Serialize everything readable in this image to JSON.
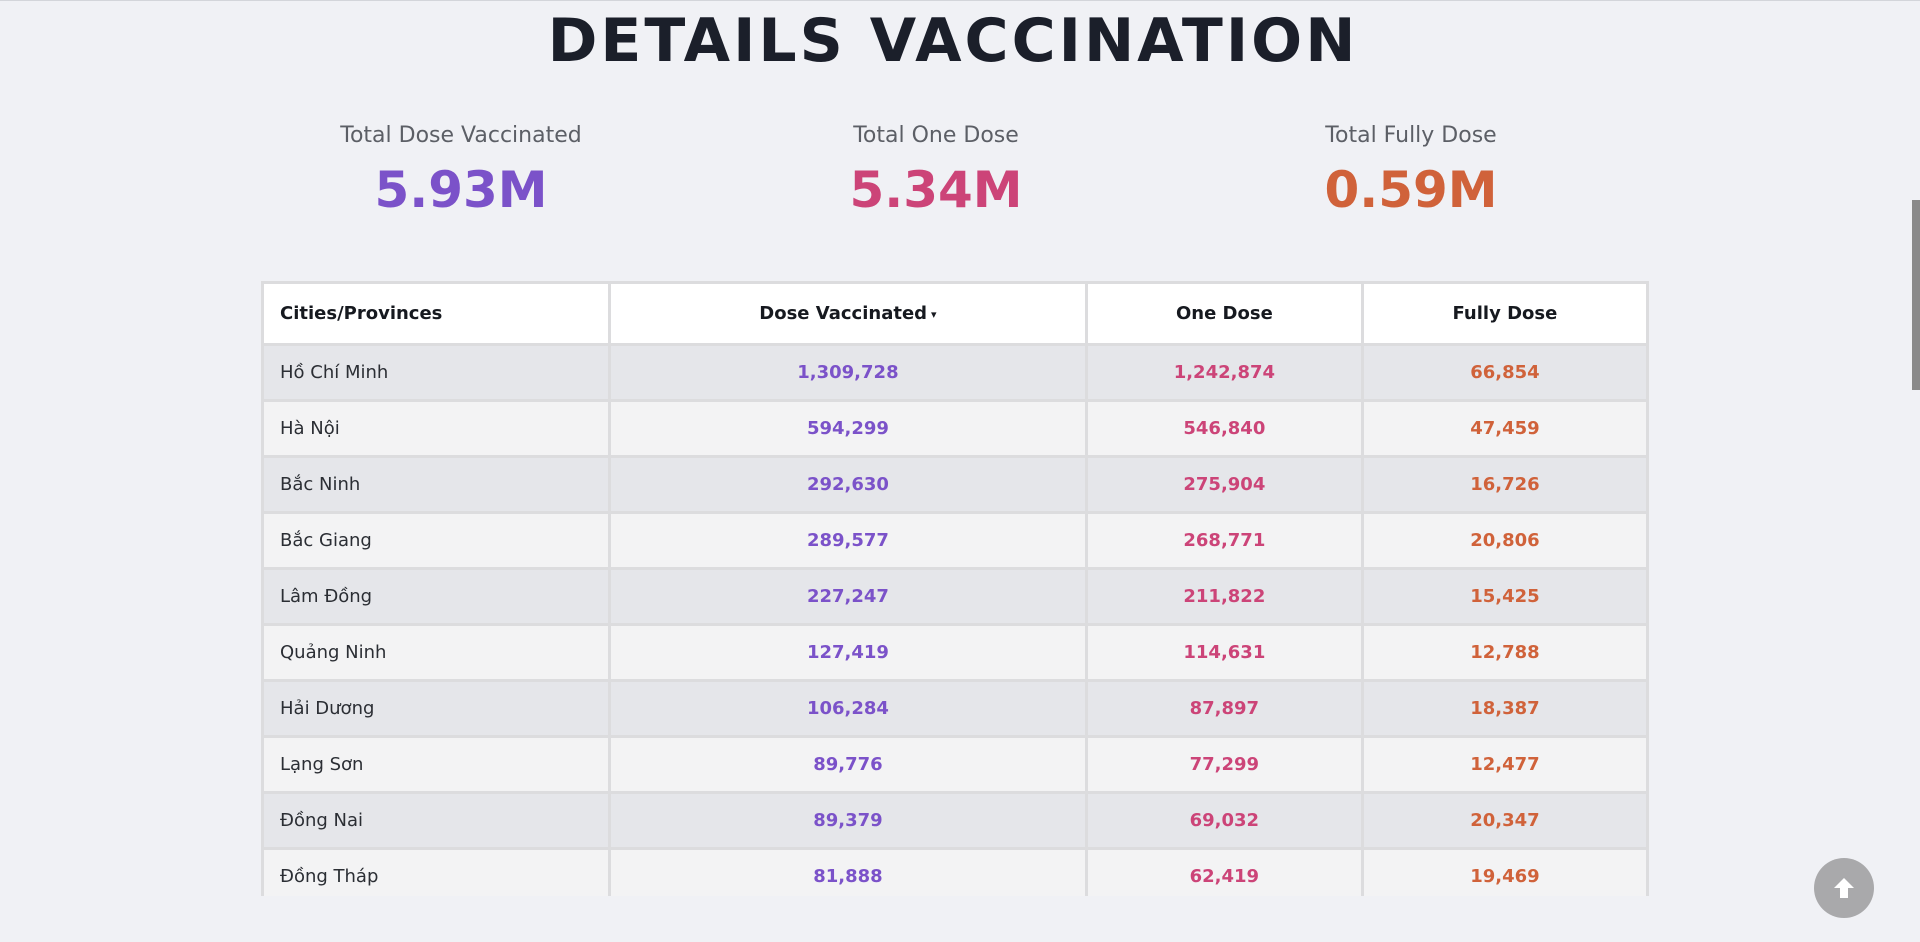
{
  "page": {
    "title": "DETAILS VACCINATION"
  },
  "stats": [
    {
      "label": "Total Dose Vaccinated",
      "value": "5.93M",
      "color": "#7b52c9"
    },
    {
      "label": "Total One Dose",
      "value": "5.34M",
      "color": "#cc4478"
    },
    {
      "label": "Total Fully Dose",
      "value": "0.59M",
      "color": "#d0623a"
    }
  ],
  "table": {
    "headers": [
      "Cities/Provinces",
      "Dose Vaccinated",
      "One Dose",
      "Fully Dose"
    ],
    "sort_indicator": "▾",
    "colors": {
      "dose": "#7b52c9",
      "one": "#cc4478",
      "fully": "#d0623a"
    },
    "rows": [
      {
        "city": "Hồ Chí Minh",
        "dose": "1,309,728",
        "one": "1,242,874",
        "fully": "66,854"
      },
      {
        "city": "Hà Nội",
        "dose": "594,299",
        "one": "546,840",
        "fully": "47,459"
      },
      {
        "city": "Bắc Ninh",
        "dose": "292,630",
        "one": "275,904",
        "fully": "16,726"
      },
      {
        "city": "Bắc Giang",
        "dose": "289,577",
        "one": "268,771",
        "fully": "20,806"
      },
      {
        "city": "Lâm Đồng",
        "dose": "227,247",
        "one": "211,822",
        "fully": "15,425"
      },
      {
        "city": "Quảng Ninh",
        "dose": "127,419",
        "one": "114,631",
        "fully": "12,788"
      },
      {
        "city": "Hải Dương",
        "dose": "106,284",
        "one": "87,897",
        "fully": "18,387"
      },
      {
        "city": "Lạng Sơn",
        "dose": "89,776",
        "one": "77,299",
        "fully": "12,477"
      },
      {
        "city": "Đồng Nai",
        "dose": "89,379",
        "one": "69,032",
        "fully": "20,347"
      },
      {
        "city": "Đồng Tháp",
        "dose": "81,888",
        "one": "62,419",
        "fully": "19,469"
      }
    ]
  },
  "scroll_top_button": {
    "icon": "arrow-up-icon"
  }
}
